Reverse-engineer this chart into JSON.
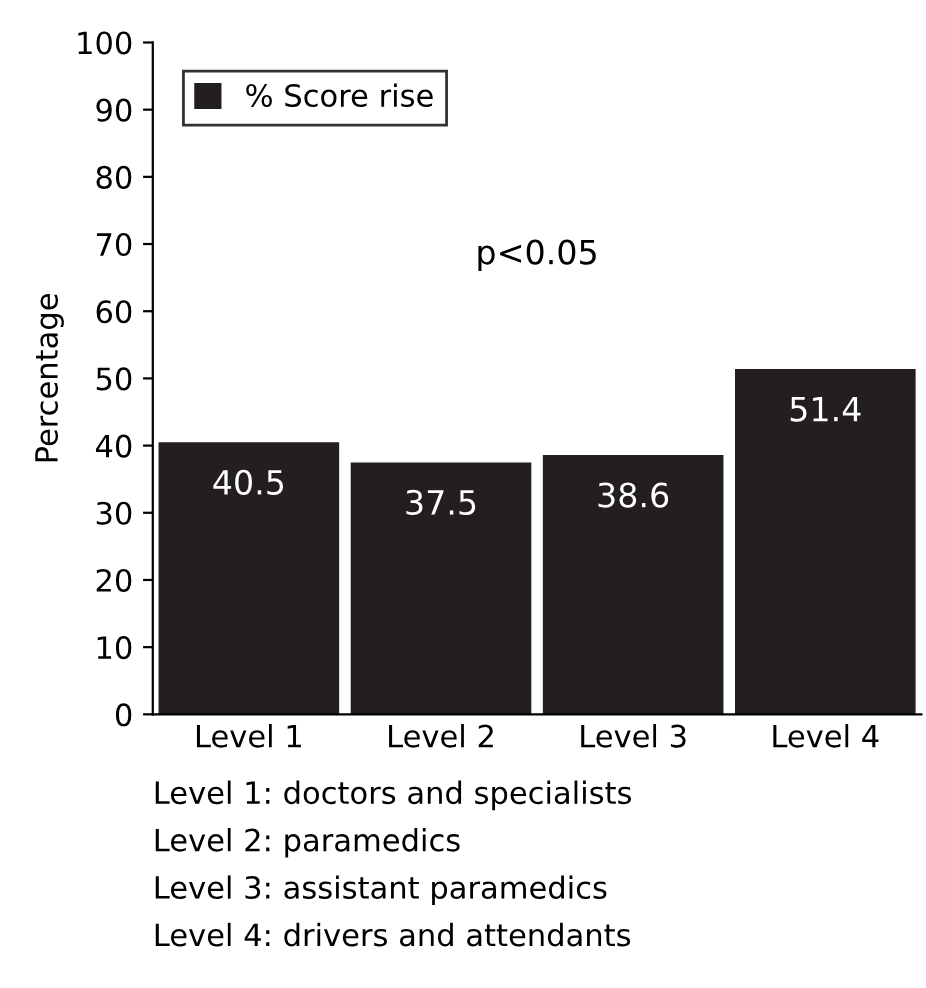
{
  "chart_data": {
    "type": "bar",
    "ylabel": "Percentage",
    "categories": [
      "Level 1",
      "Level 2",
      "Level 3",
      "Level 4"
    ],
    "series": [
      {
        "name": "% Score rise",
        "color": "#231f20",
        "values": [
          40.5,
          37.5,
          38.6,
          51.4
        ]
      }
    ],
    "data_labels": true,
    "ylim": [
      0,
      100
    ],
    "yticks": [
      0,
      10,
      20,
      30,
      40,
      50,
      60,
      70,
      80,
      90,
      100
    ],
    "grid": false,
    "legend": "top left",
    "annotations": [
      "p<0.05",
      "Level 1: doctors and specialists",
      "Level 2: paramedics",
      "Level 3: assistant paramedics",
      "Level 4: drivers and attendants"
    ]
  }
}
